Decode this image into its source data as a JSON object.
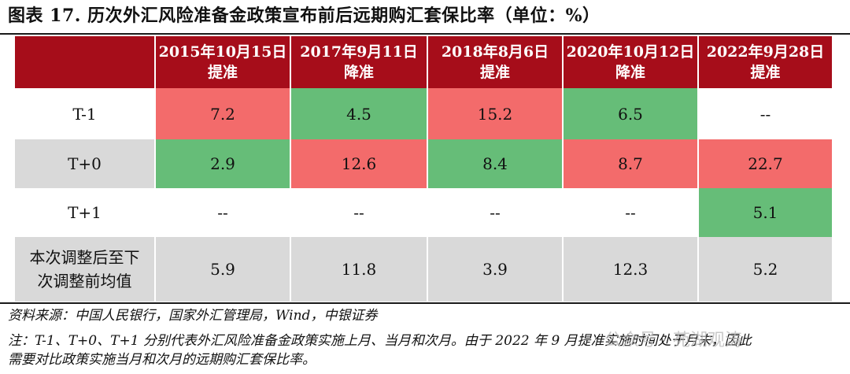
{
  "title": "图表 17. 历次外汇风险准备金政策宣布前后远期购汇套保比率（单位：%）",
  "table": {
    "columns": [
      {
        "date": "2015年10月15日",
        "action": "提准"
      },
      {
        "date": "2017年9月11日",
        "action": "降准"
      },
      {
        "date": "2018年8月6日",
        "action": "提准"
      },
      {
        "date": "2020年10月12日",
        "action": "降准"
      },
      {
        "date": "2022年9月28日",
        "action": "提准"
      }
    ],
    "rows": [
      {
        "label": "T-1",
        "values": [
          "7.2",
          "4.5",
          "15.2",
          "6.5",
          "--"
        ]
      },
      {
        "label": "T+0",
        "values": [
          "2.9",
          "12.6",
          "8.4",
          "8.7",
          "22.7"
        ]
      },
      {
        "label": "T+1",
        "values": [
          "--",
          "--",
          "--",
          "--",
          "5.1"
        ]
      },
      {
        "label_line1": "本次调整后至下",
        "label_line2": "次调整前均值",
        "values": [
          "5.9",
          "11.8",
          "3.9",
          "12.3",
          "5.2"
        ]
      }
    ]
  },
  "colors": {
    "header": "#a60d1a",
    "red_cell": "#f36b6b",
    "green_cell": "#66bd78",
    "grey_row": "#d9d9d9"
  },
  "notes": {
    "source": "资料来源：中国人民银行，国家外汇管理局，Wind，中银证券",
    "note_line1": "注：T-1、T+0、T+1 分别代表外汇风险准备金政策实施上月、当月和次月。由于 2022 年 9 月提准实施时间处于月末，因此",
    "note_line2": "需要对比政策实施当月和次月的远期购汇套保比率。"
  },
  "watermark": "公众号 · 苑湖观涛"
}
